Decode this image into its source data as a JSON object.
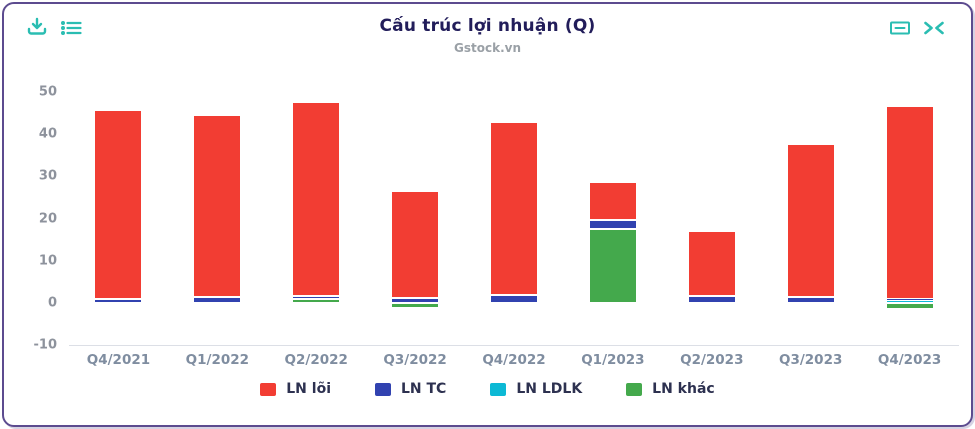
{
  "header": {
    "title": "Cấu trúc lợi nhuận (Q)",
    "subtitle": "Gstock.vn",
    "accent_color": "#2abdb2",
    "toolbar_left": [
      "download",
      "list"
    ],
    "toolbar_right": [
      "minimize",
      "collapse"
    ]
  },
  "chart_data": {
    "type": "bar",
    "stacked": true,
    "title": "Cấu trúc lợi nhuận (Q)",
    "subtitle": "Gstock.vn",
    "categories": [
      "Q4/2021",
      "Q1/2022",
      "Q2/2022",
      "Q3/2022",
      "Q4/2022",
      "Q1/2023",
      "Q2/2023",
      "Q3/2023",
      "Q4/2023"
    ],
    "series": [
      {
        "name": "LN lõi",
        "color": "#f23d33",
        "values": [
          44.8,
          43.2,
          46.0,
          25.3,
          40.9,
          9.0,
          15.4,
          36.3,
          45.8
        ]
      },
      {
        "name": "LN TC",
        "color": "#3142b0",
        "values": [
          1.0,
          1.3,
          0.7,
          1.2,
          1.9,
          2.1,
          1.7,
          1.3,
          0.4
        ]
      },
      {
        "name": "LN LDLK",
        "color": "#0cb9d5",
        "values": [
          0,
          0,
          0,
          0,
          0,
          0,
          0,
          0,
          0.4
        ]
      },
      {
        "name": "LN khác",
        "color": "#44a94c",
        "values": [
          0,
          0,
          1.0,
          -1.3,
          0,
          17.5,
          0,
          0,
          -1.5
        ]
      }
    ],
    "stack_order": [
      3,
      2,
      1,
      0
    ],
    "yticks": [
      50,
      40,
      30,
      20,
      10,
      0,
      -10
    ],
    "ylim": [
      -10,
      50
    ],
    "grid": false,
    "legend_position": "bottom"
  }
}
